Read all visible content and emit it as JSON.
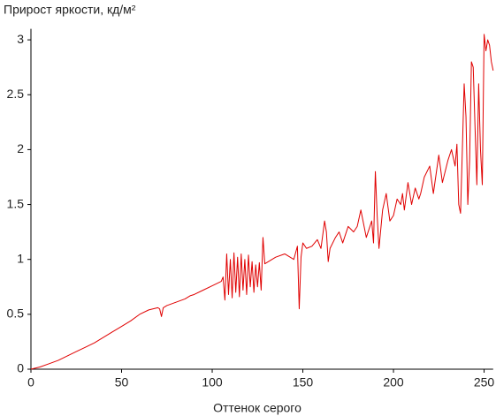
{
  "chart_data": {
    "type": "line",
    "title": "Прирост яркости, кд/м²",
    "x_label": "Оттенок серого",
    "x": [
      0,
      5,
      10,
      15,
      20,
      25,
      30,
      35,
      40,
      45,
      50,
      55,
      60,
      65,
      70,
      71,
      72,
      73,
      75,
      80,
      85,
      88,
      90,
      95,
      100,
      105,
      106,
      107,
      108,
      109,
      110,
      111,
      112,
      113,
      114,
      115,
      116,
      117,
      118,
      119,
      120,
      121,
      122,
      123,
      124,
      125,
      126,
      127,
      128,
      129,
      130,
      135,
      140,
      145,
      147,
      148,
      149,
      150,
      152,
      155,
      158,
      160,
      162,
      163,
      164,
      165,
      168,
      170,
      172,
      175,
      178,
      180,
      182,
      185,
      188,
      189,
      190,
      191,
      192,
      194,
      196,
      198,
      200,
      202,
      204,
      205,
      206,
      208,
      210,
      212,
      214,
      215,
      217,
      220,
      222,
      225,
      227,
      230,
      232,
      234,
      235,
      236,
      237,
      238,
      239,
      240,
      241,
      242,
      243,
      244,
      245,
      246,
      247,
      248,
      249,
      250,
      251,
      252,
      253,
      254,
      255
    ],
    "series": [
      {
        "name": "Прирост яркости",
        "color": "#e00000",
        "values": [
          0,
          0.02,
          0.05,
          0.08,
          0.12,
          0.16,
          0.2,
          0.24,
          0.29,
          0.34,
          0.39,
          0.44,
          0.5,
          0.54,
          0.56,
          0.55,
          0.48,
          0.56,
          0.58,
          0.61,
          0.64,
          0.67,
          0.68,
          0.72,
          0.76,
          0.8,
          0.84,
          0.63,
          1.05,
          0.68,
          1.0,
          0.65,
          1.06,
          0.7,
          1.02,
          0.66,
          1.05,
          0.72,
          1.0,
          0.68,
          1.04,
          0.75,
          0.98,
          0.7,
          0.95,
          0.75,
          0.97,
          0.72,
          1.2,
          0.96,
          0.97,
          1.02,
          1.05,
          1.0,
          1.12,
          0.55,
          1.02,
          1.15,
          1.1,
          1.12,
          1.18,
          1.1,
          1.35,
          1.25,
          0.98,
          1.1,
          1.2,
          1.25,
          1.15,
          1.3,
          1.25,
          1.3,
          1.45,
          1.2,
          1.35,
          1.15,
          1.8,
          1.4,
          1.1,
          1.45,
          1.6,
          1.35,
          1.4,
          1.55,
          1.5,
          1.6,
          1.45,
          1.7,
          1.5,
          1.65,
          1.55,
          1.6,
          1.75,
          1.85,
          1.6,
          1.95,
          1.7,
          1.9,
          2.0,
          1.85,
          2.05,
          1.5,
          1.42,
          2.0,
          2.6,
          2.3,
          1.5,
          1.9,
          2.8,
          2.75,
          2.2,
          1.68,
          2.6,
          2.0,
          1.68,
          3.05,
          2.9,
          3.0,
          2.95,
          2.8,
          2.72
        ]
      }
    ],
    "xlim": [
      0,
      255
    ],
    "ylim": [
      0,
      3.1
    ],
    "xticks": [
      0,
      50,
      100,
      150,
      200,
      250
    ],
    "yticks": [
      0,
      0.5,
      1,
      1.5,
      2,
      2.5,
      3
    ],
    "grid": false
  }
}
